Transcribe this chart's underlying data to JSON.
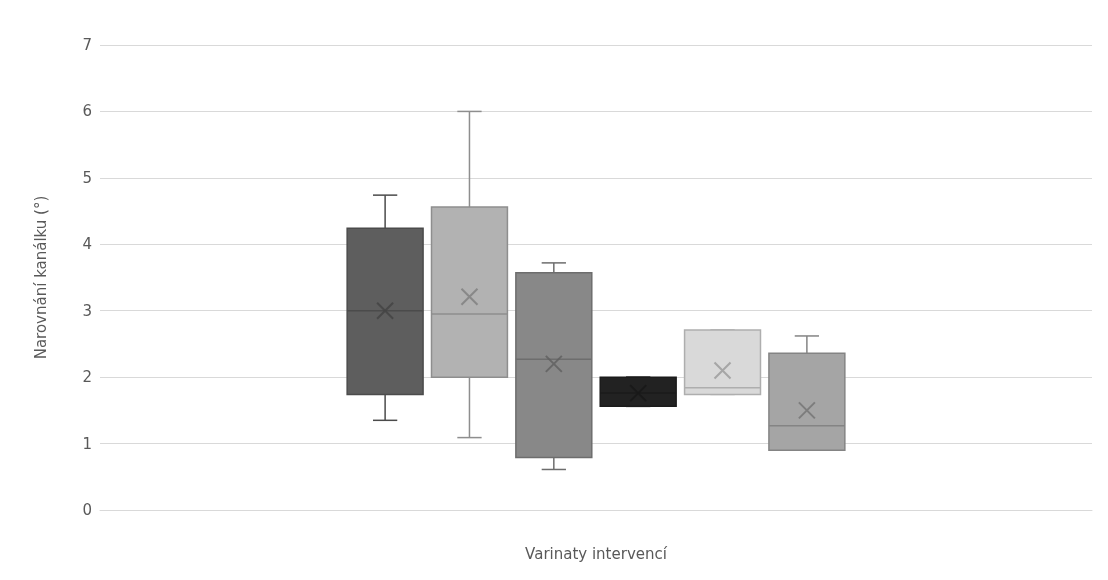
{
  "chart_data": {
    "type": "box",
    "xlabel": "Varinaty intervencí",
    "ylabel": "Narovnání kanálku (°)",
    "categories": [
      null
    ],
    "series": [
      {
        "color": "#5e5e5e",
        "boxes": [
          {
            "low": 1.35,
            "q1": 1.74,
            "median": 3.0,
            "q3": 4.24,
            "high": 4.74,
            "mean": 3.0
          }
        ]
      },
      {
        "color": "#b2b2b2",
        "boxes": [
          {
            "low": 1.09,
            "q1": 2.0,
            "median": 2.95,
            "q3": 4.56,
            "high": 6.0,
            "mean": 3.21
          }
        ]
      },
      {
        "color": "#888888",
        "boxes": [
          {
            "low": 0.61,
            "q1": 0.79,
            "median": 2.27,
            "q3": 3.57,
            "high": 3.72,
            "mean": 2.2
          }
        ]
      },
      {
        "color": "#222222",
        "boxes": [
          {
            "low": 1.56,
            "q1": 1.56,
            "median": 1.76,
            "q3": 2.0,
            "high": 2.0,
            "mean": 1.76
          }
        ]
      },
      {
        "color": "#d9d9d9",
        "boxes": [
          {
            "low": 1.74,
            "q1": 1.74,
            "median": 1.84,
            "q3": 2.71,
            "high": 2.71,
            "mean": 2.1
          }
        ]
      },
      {
        "color": "#a5a5a5",
        "boxes": [
          {
            "low": 0.9,
            "q1": 0.9,
            "median": 1.27,
            "q3": 2.36,
            "high": 2.62,
            "mean": 1.5
          }
        ]
      }
    ],
    "ylim": [
      0,
      7
    ],
    "yticks": [
      0,
      1,
      2,
      3,
      4,
      5,
      6,
      7
    ],
    "grid": "y",
    "marker": "cross",
    "tick_labels": "y"
  }
}
